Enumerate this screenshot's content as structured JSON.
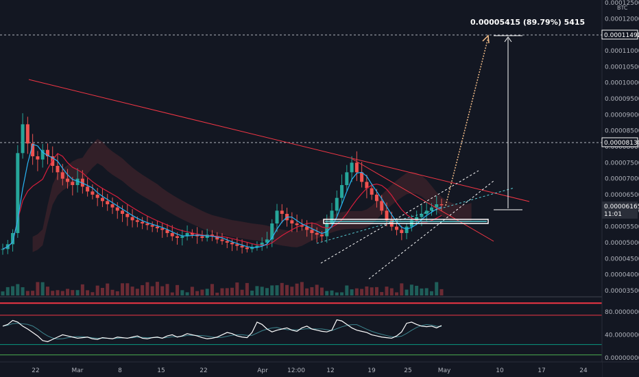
{
  "chart_data": [
    {
      "type": "candlestick",
      "ylim": [
        3.222e-05,
        0.0001275
      ],
      "quote_currency": "BTC",
      "y_ticks": [
        "0.00003500",
        "0.00004000",
        "0.00004500",
        "0.00005000",
        "0.00005500",
        "0.00006000",
        "0.00006500",
        "0.00007000",
        "0.00007500",
        "0.00008000",
        "0.00008500",
        "0.00009000",
        "0.00009500",
        "0.00010000",
        "0.00010500",
        "0.00011000",
        "0.00011500",
        "0.00012000",
        "0.00012500"
      ],
      "x_ticks": [
        "22",
        "Mar",
        "8",
        "15",
        "22",
        "Apr",
        "12:00",
        "12",
        "19",
        "25",
        "May",
        "10",
        "17",
        "24"
      ],
      "price_labels": [
        {
          "text": "0.00011492",
          "style": "outline"
        },
        {
          "text": "0.00008130",
          "style": "outline"
        },
        {
          "text": "0.00006165",
          "style": "dark"
        },
        {
          "text": "11:01",
          "style": "dark"
        }
      ],
      "measure_annotation": "0.00005415 (89.79%) 5415",
      "close_series": [
        4.8e-05,
        4.95e-05,
        5.3e-05,
        7.8e-05,
        8.7e-05,
        8.1e-05,
        7.7e-05,
        7.6e-05,
        7.9e-05,
        7.7e-05,
        7.4e-05,
        7.2e-05,
        7e-05,
        6.9e-05,
        6.8e-05,
        7e-05,
        6.75e-05,
        6.6e-05,
        6.5e-05,
        6.4e-05,
        6.3e-05,
        6.2e-05,
        6.1e-05,
        6e-05,
        5.9e-05,
        5.8e-05,
        5.7e-05,
        5.65e-05,
        5.6e-05,
        5.55e-05,
        5.5e-05,
        5.45e-05,
        5.4e-05,
        5.3e-05,
        5.2e-05,
        5.15e-05,
        5.2e-05,
        5.3e-05,
        5.25e-05,
        5.2e-05,
        5.15e-05,
        5.25e-05,
        5.2e-05,
        5.1e-05,
        5.05e-05,
        5e-05,
        4.95e-05,
        4.9e-05,
        4.85e-05,
        4.8e-05,
        4.85e-05,
        4.9e-05,
        5e-05,
        5.1e-05,
        5.6e-05,
        6e-05,
        5.9e-05,
        5.7e-05,
        5.6e-05,
        5.55e-05,
        5.5e-05,
        5.4e-05,
        5.3e-05,
        5.25e-05,
        5.2e-05,
        5.6e-05,
        6e-05,
        6.4e-05,
        6.8e-05,
        7.2e-05,
        7.5e-05,
        7.2e-05,
        6.9e-05,
        6.7e-05,
        6.5e-05,
        6.3e-05,
        6e-05,
        5.7e-05,
        5.5e-05,
        5.4e-05,
        5.3e-05,
        5.5e-05,
        5.7e-05,
        5.8e-05,
        5.9e-05,
        6e-05,
        6.1e-05,
        6.2e-05,
        6.17e-05
      ],
      "trendlines": [
        "descending resistance",
        "rising channel",
        "horizontal support",
        "projection target"
      ]
    },
    {
      "type": "line",
      "ylim": [
        0,
        100
      ],
      "y_ticks": [
        "80.00000000",
        "40.00000000",
        "0.00000000"
      ],
      "levels": [
        {
          "value": 95,
          "color": "#f23645"
        },
        {
          "value": 74,
          "color": "#f23645"
        },
        {
          "value": 23,
          "color": "#089981"
        },
        {
          "value": 5,
          "color": "#4caf50"
        }
      ],
      "rsi_series": [
        55,
        58,
        65,
        62,
        55,
        50,
        44,
        38,
        30,
        28,
        32,
        36,
        40,
        38,
        36,
        34,
        35,
        36,
        33,
        32,
        35,
        34,
        33,
        36,
        35,
        34,
        36,
        38,
        34,
        33,
        35,
        36,
        34,
        38,
        40,
        36,
        38,
        42,
        40,
        38,
        35,
        33,
        34,
        36,
        40,
        44,
        42,
        38,
        36,
        35,
        44,
        62,
        58,
        50,
        45,
        48,
        50,
        52,
        48,
        46,
        52,
        55,
        50,
        48,
        46,
        45,
        48,
        66,
        64,
        58,
        52,
        48,
        46,
        44,
        40,
        38,
        36,
        35,
        34,
        38,
        45,
        60,
        62,
        58,
        55,
        54,
        55,
        52,
        56
      ]
    }
  ],
  "colors": {
    "up": "#26a69a",
    "down": "#ef5350",
    "bg": "#131722",
    "resistance": "#f23645",
    "projection": "#f7c08a",
    "channel": "#ffffff"
  }
}
